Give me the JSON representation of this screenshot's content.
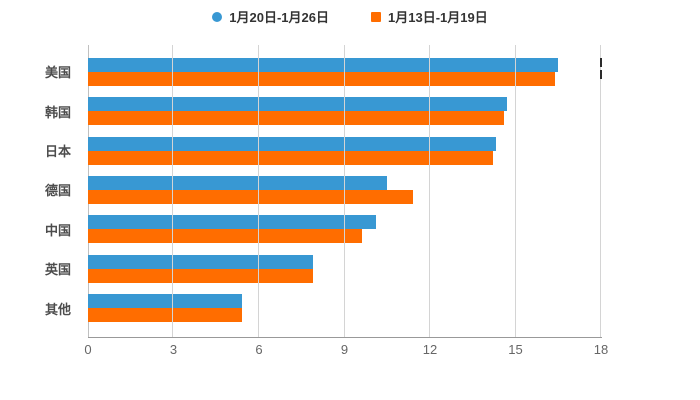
{
  "legend": {
    "items": [
      {
        "label": "1月20日-1月26日",
        "color": "#3898d3",
        "shape": "circle"
      },
      {
        "label": "1月13日-1月19日",
        "color": "#ff6d00",
        "shape": "square"
      }
    ]
  },
  "chart_data": {
    "type": "bar",
    "orientation": "horizontal",
    "title": "",
    "xlabel": "",
    "ylabel": "",
    "categories": [
      "美国",
      "韩国",
      "日本",
      "德国",
      "中国",
      "英国",
      "其他"
    ],
    "series": [
      {
        "name": "1月20日-1月26日",
        "color": "#3898d3",
        "values": [
          16.5,
          14.7,
          14.3,
          10.5,
          10.1,
          7.9,
          5.4
        ]
      },
      {
        "name": "1月13日-1月19日",
        "color": "#ff6d00",
        "values": [
          16.4,
          14.6,
          14.2,
          11.4,
          9.6,
          7.9,
          5.4
        ]
      }
    ],
    "xlim": [
      0,
      18
    ],
    "x_ticks": [
      0,
      3,
      6,
      9,
      12,
      15,
      18
    ],
    "grid": true,
    "legend_position": "top"
  },
  "colors": {
    "background": "#ffffff",
    "gridline": "#d4d4d4",
    "axis_line": "#999999",
    "tick_label": "#666666",
    "category_label": "#4d4d4d"
  }
}
